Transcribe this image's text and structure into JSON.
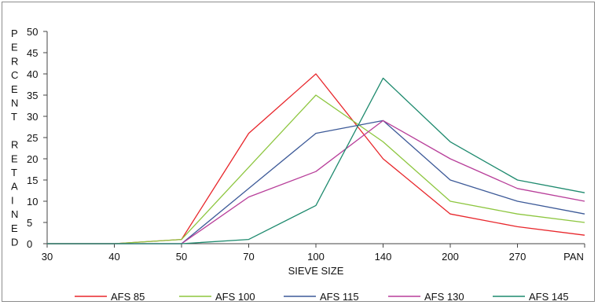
{
  "chart_data": {
    "type": "line",
    "categories": [
      "30",
      "40",
      "50",
      "70",
      "100",
      "140",
      "200",
      "270",
      "PAN"
    ],
    "series": [
      {
        "name": "AFS 85",
        "color": "#e8262b",
        "values": [
          0,
          0,
          1,
          26,
          40,
          20,
          7,
          4,
          2
        ]
      },
      {
        "name": "AFS 100",
        "color": "#8dc63f",
        "values": [
          0,
          0,
          1,
          18,
          35,
          24,
          10,
          7,
          5
        ]
      },
      {
        "name": "AFS 115",
        "color": "#3d5a98",
        "values": [
          0,
          0,
          0,
          13,
          26,
          29,
          15,
          10,
          7
        ]
      },
      {
        "name": "AFS 130",
        "color": "#b83f9a",
        "values": [
          0,
          0,
          0,
          11,
          17,
          29,
          20,
          13,
          10
        ]
      },
      {
        "name": "AFS 145",
        "color": "#1e8a6e",
        "values": [
          0,
          0,
          0,
          1,
          9,
          39,
          24,
          15,
          12
        ]
      }
    ],
    "xlabel": "SIEVE SIZE",
    "ylabel": "PERCENT RETAINED",
    "ylim": [
      0,
      50
    ],
    "yticks": [
      0,
      5,
      10,
      15,
      20,
      25,
      30,
      35,
      40,
      45,
      50
    ],
    "grid": false,
    "legend_position": "bottom"
  }
}
